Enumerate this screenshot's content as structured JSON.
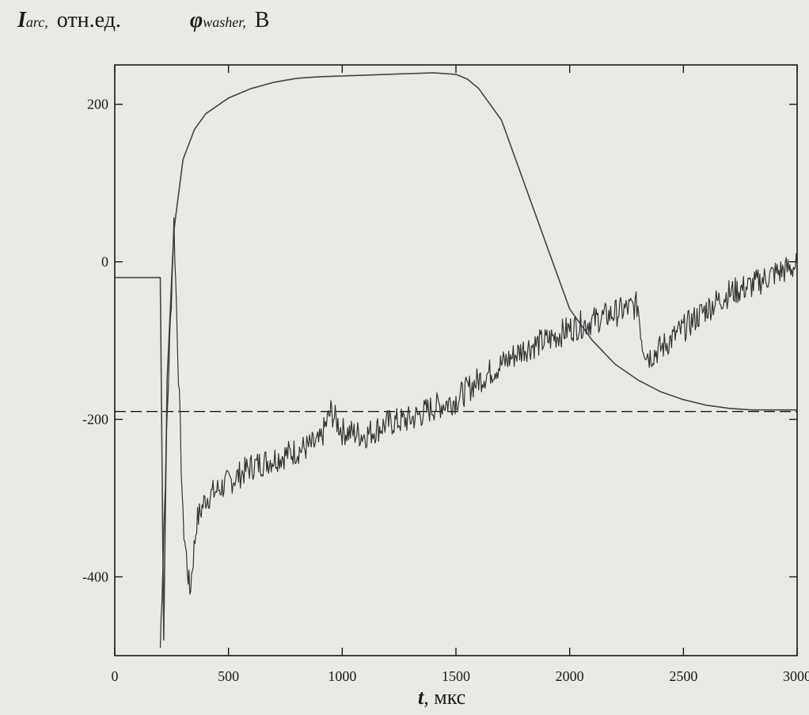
{
  "header": {
    "i_arc_symbol": "I",
    "i_arc_subscript": "arc,",
    "i_arc_unit": "отн.ед.",
    "phi_symbol": "φ",
    "phi_subscript": "washer,",
    "phi_unit": "B"
  },
  "footer": {
    "t_symbol": "t",
    "t_unit": ", мкс"
  },
  "chart_data": {
    "type": "line",
    "xlabel": "t, мкс",
    "ylabel": "I_arc, отн.ед.; φ_washer, B",
    "xlim": [
      0,
      3000
    ],
    "ylim": [
      -500,
      250
    ],
    "x_ticks": [
      "0",
      "500",
      "1000",
      "1500",
      "2000",
      "2500",
      "3000"
    ],
    "y_ticks": [
      "200",
      "0",
      "-200",
      "-400"
    ],
    "grid": false,
    "dashed_reference_y": -190,
    "series": [
      {
        "x": [
          0,
          200,
          215,
          230,
          260,
          300,
          350,
          400,
          500,
          600,
          700,
          800,
          900,
          1000,
          1200,
          1400,
          1500,
          1550,
          1600,
          1700,
          1800,
          1900,
          2000,
          2100,
          2200,
          2300,
          2400,
          2500,
          2600,
          2700,
          2800,
          2900,
          3000
        ],
        "values": [
          -20,
          -20,
          -480,
          -150,
          40,
          130,
          168,
          188,
          208,
          220,
          228,
          233,
          235,
          236,
          238,
          240,
          238,
          232,
          220,
          180,
          100,
          20,
          -60,
          -100,
          -130,
          -150,
          -165,
          -175,
          -182,
          -186,
          -188,
          -188,
          -188
        ],
        "color": "#444444"
      },
      {
        "x": [
          200,
          230,
          260,
          300,
          330,
          360,
          400,
          500,
          600,
          700,
          800,
          900,
          950,
          1000,
          1100,
          1200,
          1300,
          1400,
          1500,
          1600,
          1700,
          1800,
          1900,
          2000,
          2100,
          2200,
          2300,
          2320,
          2350,
          2400,
          2500,
          2600,
          2700,
          2800,
          2900,
          3000
        ],
        "values": [
          -490,
          -200,
          50,
          -330,
          -420,
          -330,
          -300,
          -280,
          -260,
          -250,
          -240,
          -230,
          -190,
          -215,
          -220,
          -205,
          -200,
          -185,
          -175,
          -150,
          -130,
          -110,
          -100,
          -85,
          -75,
          -65,
          -55,
          -105,
          -120,
          -110,
          -85,
          -60,
          -40,
          -30,
          -15,
          -5
        ],
        "color": "#333333",
        "noise": 18
      }
    ]
  }
}
